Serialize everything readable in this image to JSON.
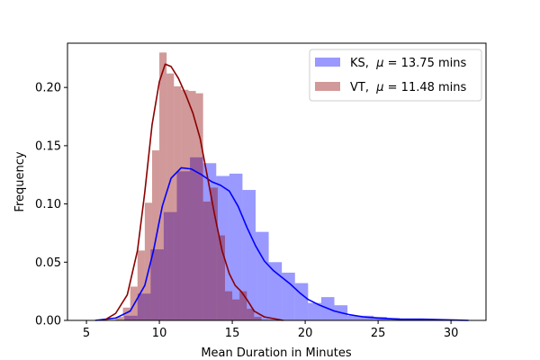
{
  "chart_data": {
    "type": "histogram",
    "xlabel": "Mean Duration in Minutes",
    "ylabel": "Frequency",
    "xlim": [
      3.7,
      32.4
    ],
    "ylim": [
      0,
      0.238
    ],
    "xticks": [
      5,
      10,
      15,
      20,
      25,
      30
    ],
    "yticks": [
      0.0,
      0.05,
      0.1,
      0.15,
      0.2
    ],
    "ytick_labels": [
      "0.00",
      "0.05",
      "0.10",
      "0.15",
      "0.20"
    ],
    "legend_position": "top-right",
    "series": [
      {
        "name": "KS,  μ = 13.75 mins",
        "legend_prefix": "KS,",
        "legend_suffix": " = 13.75 mins",
        "bar_color": "#0000ff",
        "bar_opacity": 0.4,
        "kde_color": "#0000ff",
        "bin_width": 0.9,
        "bins": [
          {
            "x": 7.6,
            "h": 0.004
          },
          {
            "x": 8.5,
            "h": 0.023
          },
          {
            "x": 9.4,
            "h": 0.061
          },
          {
            "x": 10.3,
            "h": 0.093
          },
          {
            "x": 11.2,
            "h": 0.128
          },
          {
            "x": 12.1,
            "h": 0.14
          },
          {
            "x": 13.0,
            "h": 0.135
          },
          {
            "x": 13.9,
            "h": 0.124
          },
          {
            "x": 14.8,
            "h": 0.126
          },
          {
            "x": 15.7,
            "h": 0.112
          },
          {
            "x": 16.6,
            "h": 0.076
          },
          {
            "x": 17.5,
            "h": 0.05
          },
          {
            "x": 18.4,
            "h": 0.041
          },
          {
            "x": 19.3,
            "h": 0.032
          },
          {
            "x": 20.2,
            "h": 0.015
          },
          {
            "x": 21.1,
            "h": 0.02
          },
          {
            "x": 22.0,
            "h": 0.013
          },
          {
            "x": 22.9,
            "h": 0.004
          },
          {
            "x": 23.8,
            "h": 0.004
          },
          {
            "x": 24.7,
            "h": 0.003
          },
          {
            "x": 25.6,
            "h": 0.002
          },
          {
            "x": 26.5,
            "h": 0.001
          },
          {
            "x": 27.4,
            "h": 0.001
          }
        ],
        "kde": [
          [
            5.6,
            0
          ],
          [
            7.0,
            0.002
          ],
          [
            8.0,
            0.008
          ],
          [
            9.0,
            0.03
          ],
          [
            9.6,
            0.06
          ],
          [
            10.2,
            0.098
          ],
          [
            10.8,
            0.122
          ],
          [
            11.5,
            0.131
          ],
          [
            12.2,
            0.13
          ],
          [
            12.9,
            0.125
          ],
          [
            13.6,
            0.119
          ],
          [
            14.2,
            0.116
          ],
          [
            14.8,
            0.111
          ],
          [
            15.4,
            0.098
          ],
          [
            16.0,
            0.08
          ],
          [
            16.6,
            0.064
          ],
          [
            17.2,
            0.051
          ],
          [
            17.8,
            0.043
          ],
          [
            18.4,
            0.037
          ],
          [
            19.0,
            0.031
          ],
          [
            19.6,
            0.024
          ],
          [
            20.2,
            0.018
          ],
          [
            21.0,
            0.013
          ],
          [
            22.0,
            0.008
          ],
          [
            23.0,
            0.005
          ],
          [
            24.0,
            0.003
          ],
          [
            25.0,
            0.002
          ],
          [
            26.5,
            0.001
          ],
          [
            28.0,
            0.001
          ],
          [
            29.5,
            0.0005
          ],
          [
            31.2,
            0
          ]
        ]
      },
      {
        "name": "VT,  μ = 11.48 mins",
        "legend_prefix": "VT,",
        "legend_suffix": " = 11.48 mins",
        "bar_color": "#8b0000",
        "bar_opacity": 0.4,
        "kde_color": "#8b0000",
        "bin_width": 0.5,
        "bins": [
          {
            "x": 7.0,
            "h": 0.003
          },
          {
            "x": 7.5,
            "h": 0.011
          },
          {
            "x": 8.0,
            "h": 0.029
          },
          {
            "x": 8.5,
            "h": 0.06
          },
          {
            "x": 9.0,
            "h": 0.101
          },
          {
            "x": 9.5,
            "h": 0.146
          },
          {
            "x": 10.0,
            "h": 0.23
          },
          {
            "x": 10.5,
            "h": 0.212
          },
          {
            "x": 11.0,
            "h": 0.201
          },
          {
            "x": 11.5,
            "h": 0.198
          },
          {
            "x": 12.0,
            "h": 0.197
          },
          {
            "x": 12.5,
            "h": 0.195
          },
          {
            "x": 13.0,
            "h": 0.102
          },
          {
            "x": 13.5,
            "h": 0.114
          },
          {
            "x": 14.0,
            "h": 0.073
          },
          {
            "x": 14.5,
            "h": 0.025
          },
          {
            "x": 15.0,
            "h": 0.018
          },
          {
            "x": 15.5,
            "h": 0.025
          },
          {
            "x": 16.0,
            "h": 0.01
          },
          {
            "x": 16.5,
            "h": 0.003
          }
        ],
        "kde": [
          [
            6.2,
            0
          ],
          [
            7.0,
            0.006
          ],
          [
            7.8,
            0.022
          ],
          [
            8.5,
            0.06
          ],
          [
            9.0,
            0.11
          ],
          [
            9.5,
            0.168
          ],
          [
            10.0,
            0.205
          ],
          [
            10.4,
            0.22
          ],
          [
            10.8,
            0.218
          ],
          [
            11.3,
            0.208
          ],
          [
            11.8,
            0.194
          ],
          [
            12.3,
            0.178
          ],
          [
            12.8,
            0.156
          ],
          [
            13.3,
            0.123
          ],
          [
            13.8,
            0.09
          ],
          [
            14.3,
            0.06
          ],
          [
            14.8,
            0.04
          ],
          [
            15.2,
            0.03
          ],
          [
            15.6,
            0.025
          ],
          [
            16.0,
            0.018
          ],
          [
            16.5,
            0.008
          ],
          [
            17.2,
            0.003
          ],
          [
            18.5,
            0
          ]
        ]
      }
    ]
  }
}
